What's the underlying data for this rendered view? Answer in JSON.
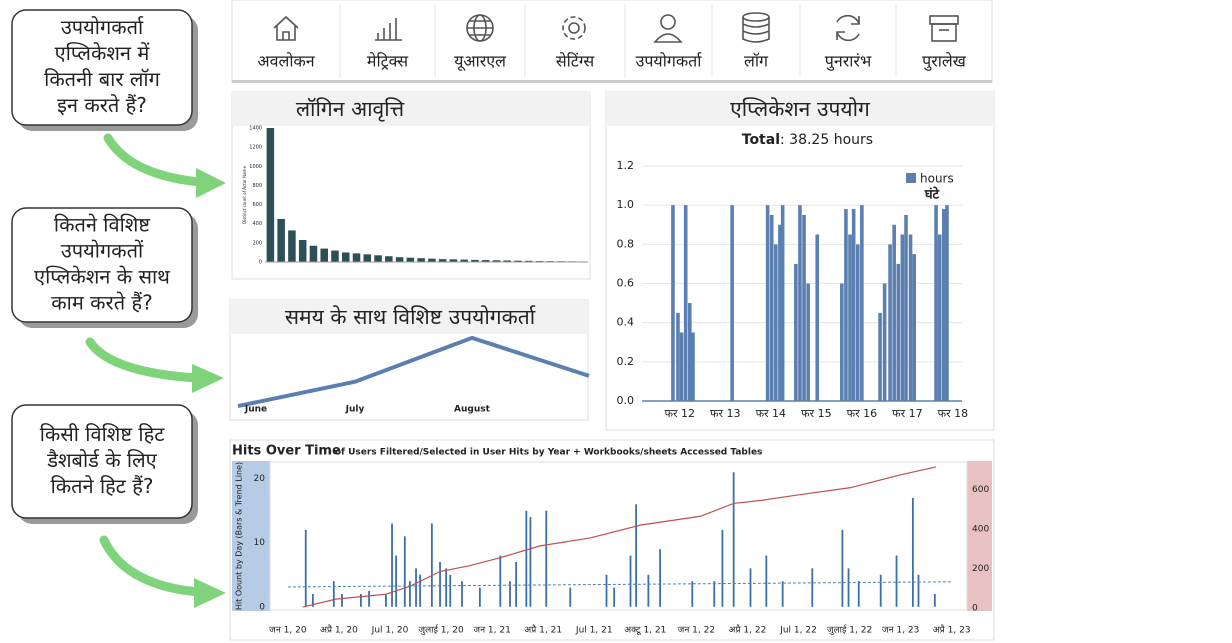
{
  "callouts": [
    [
      "उपयोगकर्ता",
      "एप्लिकेशन में",
      "कितनी बार लॉग",
      "इन करते हैं?"
    ],
    [
      "कितने विशिष्ट",
      "उपयोगकतों",
      "एप्लिकेशन के साथ",
      "काम करते हैं?"
    ],
    [
      "किसी विशिष्ट हिट",
      "डैशबोर्ड के लिए",
      "कितने हिट हैं?"
    ]
  ],
  "nav": [
    "अवलोकन",
    "मेट्रिक्स",
    "यूआरएल",
    "सेटिंग्स",
    "उपयोगकर्ता",
    "लॉग",
    "पुनरारंभ",
    "पुरालेख"
  ],
  "chart_data": [
    {
      "type": "bar",
      "title": "लॉगिन आवृत्ति",
      "y_label": "Distinct count of Actor Name",
      "categories": [
        null,
        null,
        null,
        null,
        null,
        null,
        null,
        null,
        null,
        null,
        null,
        null,
        null,
        null,
        null,
        null,
        null,
        null,
        null,
        null,
        null,
        null,
        null,
        null,
        null,
        null,
        null,
        null,
        null,
        null
      ],
      "values": [
        1400,
        450,
        330,
        230,
        170,
        140,
        120,
        100,
        90,
        80,
        70,
        60,
        50,
        45,
        40,
        35,
        30,
        28,
        25,
        22,
        20,
        18,
        16,
        14,
        12,
        10,
        9,
        8,
        7,
        6
      ],
      "color": "#2d4f57",
      "ylim": [
        0,
        1400
      ],
      "yticks": [
        0,
        200,
        400,
        600,
        800,
        1000,
        1200,
        1400
      ]
    },
    {
      "type": "bar",
      "title": "एप्लिकेशन उपयोग",
      "subtitle": {
        "label": "Total",
        "text": ": 38.25 hours"
      },
      "annotation": "घंटे",
      "legend": "upper right",
      "grid": true,
      "series": [
        {
          "name": "hours",
          "color": "#5b7fb0",
          "x": [
            11.85,
            11.96,
            12.04,
            12.13,
            12.22,
            12.29,
            13.15,
            13.93,
            14.02,
            14.11,
            14.2,
            14.26,
            14.55,
            14.64,
            14.73,
            14.82,
            15.02,
            15.56,
            15.65,
            15.74,
            15.82,
            15.91,
            16.0,
            16.4,
            16.5,
            16.62,
            16.71,
            16.8,
            16.89,
            16.97,
            17.07,
            17.15,
            17.63,
            17.71,
            17.8,
            17.87
          ],
          "values": [
            1.0,
            0.45,
            0.35,
            1.0,
            0.5,
            0.35,
            1.0,
            1.0,
            0.95,
            0.8,
            0.9,
            1.0,
            0.7,
            1.0,
            0.95,
            0.6,
            0.85,
            0.6,
            0.98,
            0.85,
            0.98,
            0.8,
            1.0,
            0.45,
            0.6,
            0.8,
            0.9,
            0.7,
            0.85,
            0.95,
            0.85,
            0.75,
            1.0,
            0.85,
            0.98,
            1.0
          ]
        }
      ],
      "xlim": [
        11.17,
        18.2
      ],
      "xticks": [
        {
          "value": 12,
          "label": "फर 12"
        },
        {
          "value": 13,
          "label": "फर 13"
        },
        {
          "value": 14,
          "label": "फर 14"
        },
        {
          "value": 15,
          "label": "फर 15"
        },
        {
          "value": 16,
          "label": "फर 16"
        },
        {
          "value": 17,
          "label": "फर 17"
        },
        {
          "value": 18,
          "label": "फर 18"
        }
      ],
      "ylim": [
        0,
        1.2
      ],
      "yticks": [
        {
          "value": 0,
          "label": "0.0"
        },
        0.2,
        0.4,
        0.6,
        0.8,
        {
          "value": 1,
          "label": "1.0"
        },
        1.2
      ]
    },
    {
      "type": "line",
      "title": "समय के साथ विशिष्ट उपयोगकर्ता",
      "categories": [
        "June",
        "July",
        "August",
        null
      ],
      "values": [
        4,
        29,
        74,
        35
      ],
      "color": "#5b7fb0",
      "ylim": [
        0,
        80
      ]
    },
    {
      "type": "combo",
      "title": "Hits Over Time",
      "subtitle": "- of Users Filtered/Selected in User Hits by Year + Workbooks/sheets Accessed Tables",
      "y_label": "Hit Oount by Day (Bars & Trend Line)",
      "xlim": [
        -0.35,
        13.3
      ],
      "xticks": [
        {
          "value": 0,
          "label": "जन 1, 20"
        },
        {
          "value": 1,
          "label": "अप्रै 1, 20"
        },
        {
          "value": 2,
          "label": "Jul 1, 20"
        },
        {
          "value": 3,
          "label": "जुलाई 1, 20"
        },
        {
          "value": 4,
          "label": "जन 1, 21"
        },
        {
          "value": 5,
          "label": "अप्रै 1, 21"
        },
        {
          "value": 6,
          "label": "Jul 1, 21"
        },
        {
          "value": 7,
          "label": "अक्टू 1, 21"
        },
        {
          "value": 8,
          "label": "जन 1, 22"
        },
        {
          "value": 9,
          "label": "अप्रै 1, 22"
        },
        {
          "value": 10,
          "label": "Jul 1, 22"
        },
        {
          "value": 11,
          "label": "जुलाई 1, 22"
        },
        {
          "value": 12,
          "label": "जन 1, 23"
        },
        {
          "value": 13,
          "label": "अप्रै 1, 23"
        }
      ],
      "ylim": [
        -0.5,
        22.6
      ],
      "yticks": [
        0,
        10,
        20
      ],
      "y2lim": [
        -10,
        740
      ],
      "y2ticks": [
        0,
        200,
        400,
        600
      ],
      "series": [
        {
          "type": "bar",
          "color": "#3a6fa8",
          "x": [
            0.35,
            0.49,
            0.9,
            1.06,
            1.43,
            1.59,
            1.92,
            2.04,
            2.12,
            2.29,
            2.39,
            2.51,
            2.59,
            2.82,
            2.98,
            3.1,
            3.18,
            3.41,
            3.76,
            4.16,
            4.35,
            4.47,
            4.67,
            4.75,
            5.06,
            5.53,
            6.24,
            6.39,
            6.71,
            6.82,
            7.06,
            7.29,
            7.92,
            8.35,
            8.51,
            8.73,
            9.06,
            9.37,
            9.69,
            10.27,
            10.86,
            10.98,
            11.18,
            11.61,
            11.92,
            12.24,
            12.35,
            12.67
          ],
          "values": [
            12,
            2,
            4,
            2,
            2,
            2.5,
            2,
            13,
            8,
            11,
            4,
            6,
            5,
            13,
            7,
            6,
            5,
            4,
            3,
            8,
            4,
            7,
            15,
            14,
            15,
            3,
            5,
            3,
            8,
            16,
            5,
            9,
            4,
            4,
            12,
            21,
            6,
            8,
            4,
            6,
            12,
            6,
            4,
            5,
            8,
            17,
            5,
            2
          ]
        },
        {
          "type": "line",
          "axis": "y2",
          "color": "#c0504d",
          "x": [
            0.29,
            0.94,
            1.92,
            2.39,
            2.98,
            3.57,
            4.16,
            4.94,
            5.92,
            6.9,
            8.08,
            8.73,
            9.25,
            10.04,
            11.02,
            12.0,
            12.69
          ],
          "values": [
            5,
            45,
            70,
            110,
            185,
            215,
            255,
            315,
            355,
            420,
            465,
            530,
            545,
            575,
            610,
            675,
            715
          ]
        },
        {
          "type": "line",
          "dashed": true,
          "color": "#4a7fb5",
          "x": [
            0,
            13
          ],
          "values": [
            3.1,
            3.9
          ]
        }
      ]
    }
  ]
}
